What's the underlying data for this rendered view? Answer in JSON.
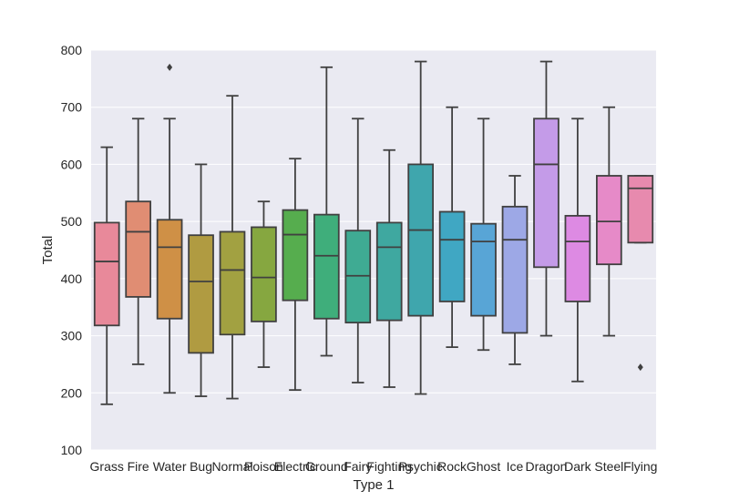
{
  "chart_data": {
    "type": "box",
    "xlabel": "Type 1",
    "ylabel": "Total",
    "ylim": [
      100,
      800
    ],
    "yticks": [
      100,
      200,
      300,
      400,
      500,
      600,
      700,
      800
    ],
    "grid": true,
    "categories": [
      "Grass",
      "Fire",
      "Water",
      "Bug",
      "Normal",
      "Poison",
      "Electric",
      "Ground",
      "Fairy",
      "Fighting",
      "Psychic",
      "Rock",
      "Ghost",
      "Ice",
      "Dragon",
      "Dark",
      "Steel",
      "Flying"
    ],
    "boxes": [
      {
        "category": "Grass",
        "whisker_low": 180,
        "q1": 318,
        "median": 430,
        "q3": 498,
        "whisker_high": 630,
        "outliers": [],
        "color": "#e8899a"
      },
      {
        "category": "Fire",
        "whisker_low": 250,
        "q1": 368,
        "median": 482,
        "q3": 535,
        "whisker_high": 680,
        "outliers": [],
        "color": "#e08d73"
      },
      {
        "category": "Water",
        "whisker_low": 200,
        "q1": 330,
        "median": 455,
        "q3": 503,
        "whisker_high": 680,
        "outliers": [
          770
        ],
        "color": "#cf9046"
      },
      {
        "category": "Bug",
        "whisker_low": 194,
        "q1": 270,
        "median": 395,
        "q3": 476,
        "whisker_high": 600,
        "outliers": [],
        "color": "#b09b41"
      },
      {
        "category": "Normal",
        "whisker_low": 190,
        "q1": 302,
        "median": 415,
        "q3": 482,
        "whisker_high": 720,
        "outliers": [],
        "color": "#a2a141"
      },
      {
        "category": "Poison",
        "whisker_low": 245,
        "q1": 325,
        "median": 402,
        "q3": 490,
        "whisker_high": 535,
        "outliers": [],
        "color": "#86a740"
      },
      {
        "category": "Electric",
        "whisker_low": 205,
        "q1": 362,
        "median": 477,
        "q3": 520,
        "whisker_high": 610,
        "outliers": [],
        "color": "#56ad4e"
      },
      {
        "category": "Ground",
        "whisker_low": 265,
        "q1": 330,
        "median": 440,
        "q3": 512,
        "whisker_high": 770,
        "outliers": [],
        "color": "#3fae7b"
      },
      {
        "category": "Fairy",
        "whisker_low": 218,
        "q1": 323,
        "median": 405,
        "q3": 484,
        "whisker_high": 680,
        "outliers": [],
        "color": "#3fab93"
      },
      {
        "category": "Fighting",
        "whisker_low": 210,
        "q1": 327,
        "median": 455,
        "q3": 498,
        "whisker_high": 625,
        "outliers": [],
        "color": "#3fa8a0"
      },
      {
        "category": "Psychic",
        "whisker_low": 198,
        "q1": 335,
        "median": 485,
        "q3": 600,
        "whisker_high": 780,
        "outliers": [],
        "color": "#3fa6ad"
      },
      {
        "category": "Rock",
        "whisker_low": 280,
        "q1": 360,
        "median": 468,
        "q3": 517,
        "whisker_high": 700,
        "outliers": [],
        "color": "#40a7c3"
      },
      {
        "category": "Ghost",
        "whisker_low": 275,
        "q1": 335,
        "median": 465,
        "q3": 496,
        "whisker_high": 680,
        "outliers": [],
        "color": "#58a5d6"
      },
      {
        "category": "Ice",
        "whisker_low": 250,
        "q1": 305,
        "median": 468,
        "q3": 526,
        "whisker_high": 580,
        "outliers": [],
        "color": "#9da8e6"
      },
      {
        "category": "Dragon",
        "whisker_low": 300,
        "q1": 420,
        "median": 600,
        "q3": 680,
        "whisker_high": 780,
        "outliers": [],
        "color": "#c49be8"
      },
      {
        "category": "Dark",
        "whisker_low": 220,
        "q1": 360,
        "median": 465,
        "q3": 510,
        "whisker_high": 680,
        "outliers": [],
        "color": "#dd8ae3"
      },
      {
        "category": "Steel",
        "whisker_low": 300,
        "q1": 425,
        "median": 500,
        "q3": 580,
        "whisker_high": 700,
        "outliers": [],
        "color": "#e68ac8"
      },
      {
        "category": "Flying",
        "whisker_low": 463,
        "q1": 463,
        "median": 558,
        "q3": 580,
        "whisker_high": 580,
        "outliers": [
          245
        ],
        "color": "#e78aae"
      }
    ]
  }
}
